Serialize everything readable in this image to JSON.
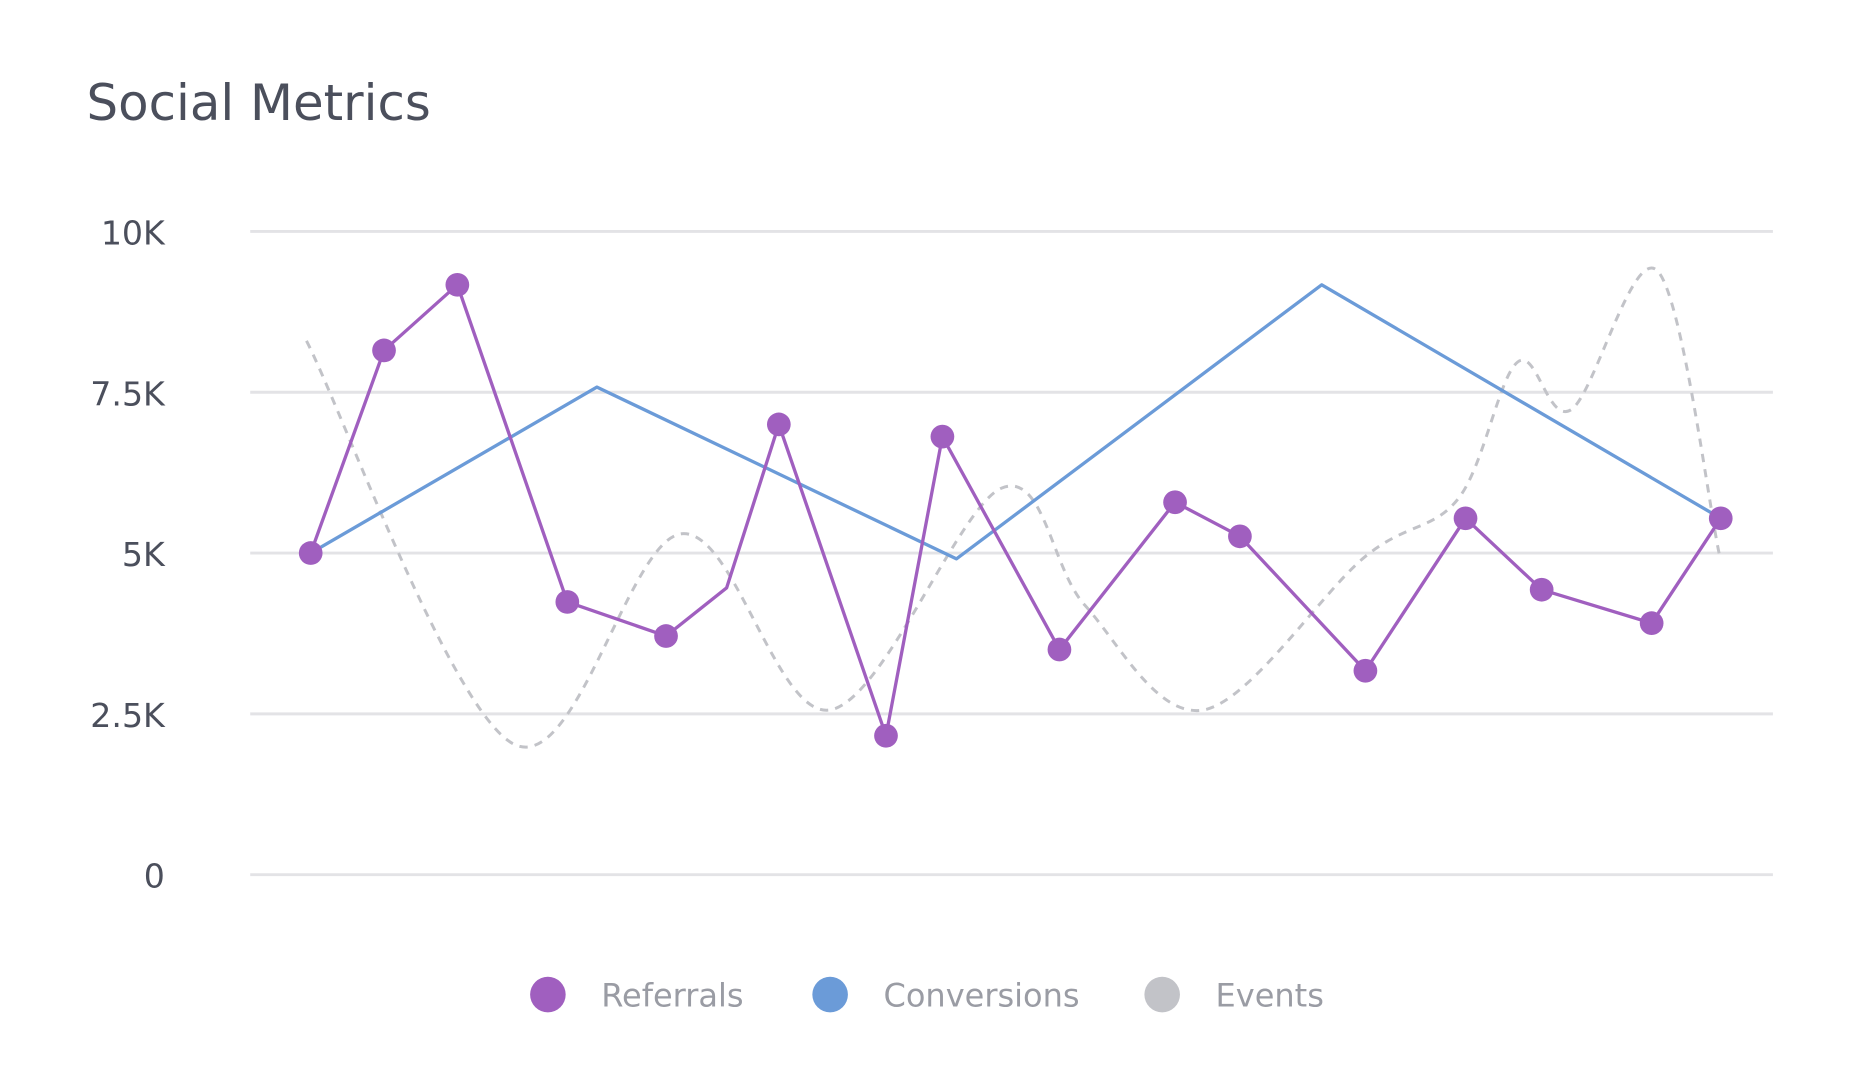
{
  "chart_data": {
    "type": "line",
    "title": "Social Metrics",
    "xlabel": "",
    "ylabel": "",
    "ylim": [
      0,
      10000
    ],
    "xlim": [
      0,
      100
    ],
    "yticks": [
      0,
      2500,
      5000,
      7500,
      10000
    ],
    "ytick_labels": [
      "0",
      "2.5K",
      "5K",
      "7.5K",
      "10K"
    ],
    "grid": true,
    "legend_position": "bottom",
    "series": [
      {
        "name": "Referrals",
        "color": "#a05fbf",
        "style": "solid-with-markers",
        "hidden_marker_indices": [
          5
        ],
        "x": [
          0,
          5.2,
          10.4,
          18.2,
          25.2,
          29.5,
          33.2,
          40.8,
          44.8,
          53.1,
          61.3,
          65.9,
          74.8,
          81.9,
          87.3,
          95.1,
          100
        ],
        "values": [
          5000,
          8150,
          9170,
          4240,
          3710,
          4460,
          7000,
          2160,
          6810,
          3500,
          5790,
          5260,
          3170,
          5540,
          4430,
          3910,
          5540
        ]
      },
      {
        "name": "Conversions",
        "color": "#6b9bd8",
        "style": "solid",
        "x": [
          0,
          20.3,
          45.8,
          71.7,
          100
        ],
        "values": [
          5000,
          7580,
          4910,
          9170,
          5540
        ]
      },
      {
        "name": "Events",
        "color": "#c2c3c8",
        "style": "dashed-smooth",
        "x": [
          -0.3,
          14.4,
          26.3,
          36.8,
          49.0,
          54.9,
          63.3,
          74.7,
          81.4,
          85.6,
          89.4,
          95.5,
          99.9
        ],
        "values": [
          8300,
          2030,
          5300,
          2560,
          6010,
          4190,
          2560,
          4930,
          5850,
          7970,
          7230,
          9390,
          4980
        ]
      }
    ]
  }
}
